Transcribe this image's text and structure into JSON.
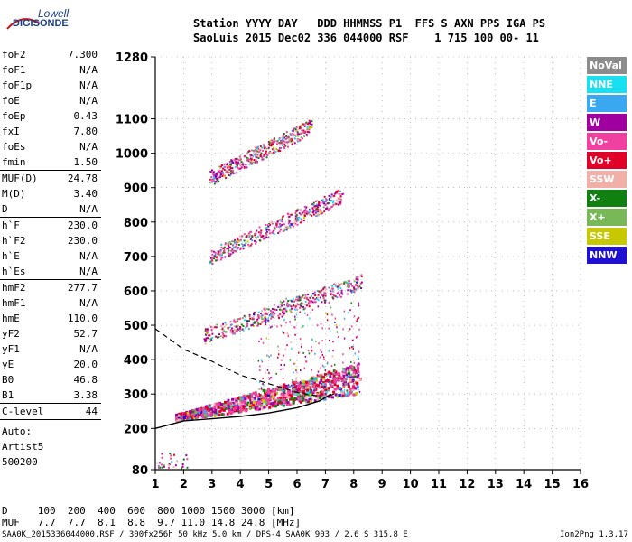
{
  "logo": {
    "line1": "Lowell",
    "line2": "DIGISONDE"
  },
  "header": {
    "row1": "Station YYYY DAY   DDD HHMMSS P1  FFS S AXN PPS IGA PS",
    "row2": "SaoLuis 2015 Dec02 336 044000 RSF    1 715 100 00- 11"
  },
  "params": [
    {
      "k": "foF2",
      "v": "7.300"
    },
    {
      "k": "foF1",
      "v": "N/A"
    },
    {
      "k": "foF1p",
      "v": "N/A"
    },
    {
      "k": "foE",
      "v": "N/A"
    },
    {
      "k": "foEp",
      "v": "0.43"
    },
    {
      "k": "fxI",
      "v": "7.80"
    },
    {
      "k": "foEs",
      "v": "N/A"
    },
    {
      "k": "fmin",
      "v": "1.50"
    },
    {
      "k": "MUF(D)",
      "v": "24.78"
    },
    {
      "k": "M(D)",
      "v": "3.40"
    },
    {
      "k": "D",
      "v": "N/A"
    },
    {
      "k": "h`F",
      "v": "230.0"
    },
    {
      "k": "h`F2",
      "v": "230.0"
    },
    {
      "k": "h`E",
      "v": "N/A"
    },
    {
      "k": "h`Es",
      "v": "N/A"
    },
    {
      "k": "hmF2",
      "v": "277.7"
    },
    {
      "k": "hmF1",
      "v": "N/A"
    },
    {
      "k": "hmE",
      "v": "110.0"
    },
    {
      "k": "yF2",
      "v": "52.7"
    },
    {
      "k": "yF1",
      "v": "N/A"
    },
    {
      "k": "yE",
      "v": "20.0"
    },
    {
      "k": "B0",
      "v": "46.8"
    },
    {
      "k": "B1",
      "v": "3.38"
    },
    {
      "k": "C-level",
      "v": "44"
    }
  ],
  "autoscaling": {
    "line1": "Auto:",
    "line2": "Artist5",
    "line3": "500200"
  },
  "legend": [
    {
      "name": "NoVal",
      "color": "#8c8c8c"
    },
    {
      "name": "NNE",
      "color": "#18e0f0"
    },
    {
      "name": "E",
      "color": "#3aa8f0"
    },
    {
      "name": "W",
      "color": "#a000a0"
    },
    {
      "name": "Vo-",
      "color": "#f040a0"
    },
    {
      "name": "Vo+",
      "color": "#e00028"
    },
    {
      "name": "SSW",
      "color": "#f0b0a8"
    },
    {
      "name": "X-",
      "color": "#108010"
    },
    {
      "name": "X+",
      "color": "#78b858"
    },
    {
      "name": "SSE",
      "color": "#c8c800"
    },
    {
      "name": "NNW",
      "color": "#2010d0"
    }
  ],
  "footer": {
    "d_row": "D     100  200  400  600  800 1000 1500 3000 [km]",
    "muf_row": "MUF   7.7  7.7  8.1  8.8  9.7 11.0 14.8 24.8 [MHz]",
    "info": "SAA0K_2015336044000.RSF / 300fx256h 50 kHz 5.0 km / DPS-4 SAA0K 903 / 2.6 S 315.8 E",
    "version": "Ion2Png 1.3.17"
  },
  "chart_data": {
    "type": "scatter",
    "title": "",
    "xlabel": "",
    "ylabel": "",
    "xlim": [
      1,
      16
    ],
    "ylim": [
      80,
      1280
    ],
    "x_ticks": [
      1,
      2,
      3,
      4,
      5,
      6,
      7,
      8,
      9,
      10,
      11,
      12,
      13,
      14,
      15,
      16
    ],
    "y_ticks": [
      80,
      200,
      300,
      400,
      500,
      600,
      700,
      800,
      900,
      1000,
      1100,
      1280
    ],
    "grid": "dotted",
    "traces": [
      {
        "name": "F2 first hop",
        "x_start": 1.7,
        "x_end": 8.2,
        "h_start": 230,
        "h_end": 330
      },
      {
        "name": "F2 second hop",
        "x_start": 2.7,
        "x_end": 8.3,
        "h_start": 460,
        "h_end": 620
      },
      {
        "name": "F2 third hop",
        "x_start": 2.9,
        "x_end": 7.6,
        "h_start": 690,
        "h_end": 870
      },
      {
        "name": "F2 fourth hop",
        "x_start": 2.9,
        "x_end": 6.5,
        "h_start": 920,
        "h_end": 1070
      },
      {
        "name": "E-region echoes",
        "x_start": 1.0,
        "x_end": 2.1,
        "h_start": 100,
        "h_end": 100
      }
    ],
    "profile_curve": {
      "label": "electron density profile",
      "points": [
        [
          1,
          200
        ],
        [
          2,
          222
        ],
        [
          3,
          228
        ],
        [
          4,
          235
        ],
        [
          5,
          245
        ],
        [
          6,
          260
        ],
        [
          6.8,
          280
        ],
        [
          7.2,
          300
        ]
      ]
    },
    "fit_curve": {
      "label": "virtual height fit",
      "points": [
        [
          1,
          490
        ],
        [
          2,
          430
        ],
        [
          3,
          395
        ],
        [
          4,
          355
        ],
        [
          5,
          330
        ],
        [
          6,
          305
        ],
        [
          7,
          290
        ],
        [
          7.3,
          300
        ]
      ]
    }
  }
}
